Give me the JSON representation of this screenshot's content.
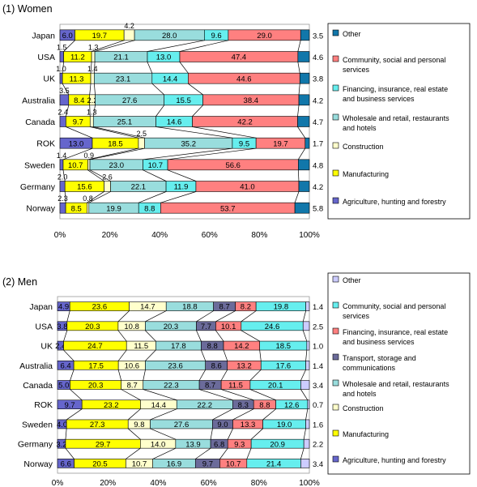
{
  "chart_data": [
    {
      "type": "bar",
      "stacked": "100%",
      "orientation": "horizontal",
      "title": "(1) Women",
      "categories": [
        "Japan",
        "USA",
        "UK",
        "Australia",
        "Canada",
        "ROK",
        "Sweden",
        "Germany",
        "Norway"
      ],
      "xlim": [
        0,
        100
      ],
      "x_ticks": [
        "0%",
        "20%",
        "40%",
        "60%",
        "80%",
        "100%"
      ],
      "legend_position": "right",
      "series": [
        {
          "name": "Agriculture, hunting and forestry",
          "color": "#6666cc",
          "values": [
            6.0,
            1.5,
            1.0,
            3.5,
            2.4,
            13.0,
            1.4,
            2.0,
            2.3
          ]
        },
        {
          "name": "Manufacturing",
          "color": "#ffff00",
          "values": [
            19.7,
            11.2,
            11.3,
            8.4,
            9.7,
            18.5,
            10.7,
            15.6,
            8.5
          ]
        },
        {
          "name": "Construction",
          "color": "#ffffcc",
          "values": [
            4.2,
            1.3,
            1.4,
            2.2,
            1.3,
            2.5,
            0.9,
            2.6,
            0.8
          ]
        },
        {
          "name": "Wholesale and retail, restaurants and hotels",
          "color": "#99dddd",
          "values": [
            28.0,
            21.1,
            23.1,
            27.6,
            25.1,
            35.2,
            23.0,
            22.1,
            19.9
          ]
        },
        {
          "name": "Financing, insurance, real estate and business services",
          "color": "#66eeee",
          "values": [
            9.6,
            13.0,
            14.4,
            15.5,
            14.6,
            9.5,
            10.7,
            11.9,
            8.8
          ]
        },
        {
          "name": "Community, social and personal services",
          "color": "#ff8080",
          "values": [
            29.0,
            47.4,
            44.6,
            38.4,
            42.2,
            19.7,
            56.6,
            41.0,
            53.7
          ]
        },
        {
          "name": "Other",
          "color": "#1177aa",
          "values": [
            3.5,
            4.6,
            3.8,
            4.2,
            4.7,
            1.7,
            4.8,
            4.2,
            5.8
          ]
        }
      ],
      "inside_labels": [
        [
          "6.0",
          "19.7",
          "",
          "28.0",
          "9.6",
          "29.0",
          ""
        ],
        [
          "",
          "11.2",
          "",
          "21.1",
          "13.0",
          "47.4",
          ""
        ],
        [
          "",
          "11.3",
          "",
          "23.1",
          "14.4",
          "44.6",
          ""
        ],
        [
          "",
          "8.4",
          "2.2",
          "27.6",
          "15.5",
          "38.4",
          ""
        ],
        [
          "",
          "9.7",
          "",
          "25.1",
          "14.6",
          "42.2",
          ""
        ],
        [
          "13.0",
          "18.5",
          "",
          "35.2",
          "9.5",
          "19.7",
          ""
        ],
        [
          "",
          "10.7",
          "",
          "23.0",
          "10.7",
          "56.6",
          ""
        ],
        [
          "",
          "15.6",
          "",
          "22.1",
          "11.9",
          "41.0",
          ""
        ],
        [
          "",
          "8.5",
          "",
          "19.9",
          "8.8",
          "53.7",
          ""
        ]
      ],
      "outside_labels": [
        {
          "row": 0,
          "seg": 2,
          "text": "4.2"
        },
        {
          "row": 1,
          "seg": 0,
          "text": "1.5"
        },
        {
          "row": 1,
          "seg": 2,
          "text": "1.3"
        },
        {
          "row": 2,
          "seg": 0,
          "text": "1.0"
        },
        {
          "row": 2,
          "seg": 2,
          "text": "1.4"
        },
        {
          "row": 3,
          "seg": 0,
          "text": "3.5"
        },
        {
          "row": 4,
          "seg": 0,
          "text": "2.4"
        },
        {
          "row": 4,
          "seg": 2,
          "text": "1.3"
        },
        {
          "row": 5,
          "seg": 2,
          "text": "2.5"
        },
        {
          "row": 6,
          "seg": 0,
          "text": "1.4"
        },
        {
          "row": 6,
          "seg": 2,
          "text": "0.9"
        },
        {
          "row": 7,
          "seg": 0,
          "text": "2.0"
        },
        {
          "row": 7,
          "seg": 2,
          "text": "2.6"
        },
        {
          "row": 8,
          "seg": 0,
          "text": "2.3"
        },
        {
          "row": 8,
          "seg": 2,
          "text": "0.8"
        }
      ]
    },
    {
      "type": "bar",
      "stacked": "100%",
      "orientation": "horizontal",
      "title": "(2) Men",
      "categories": [
        "Japan",
        "USA",
        "UK",
        "Australia",
        "Canada",
        "ROK",
        "Sweden",
        "Germany",
        "Norway"
      ],
      "xlim": [
        0,
        100
      ],
      "x_ticks": [
        "0%",
        "20%",
        "40%",
        "60%",
        "80%",
        "100%"
      ],
      "legend_position": "right",
      "series": [
        {
          "name": "Agriculture, hunting and forestry",
          "color": "#6666cc",
          "values": [
            4.9,
            3.8,
            2.4,
            6.4,
            5.0,
            9.7,
            4.0,
            3.2,
            6.6
          ]
        },
        {
          "name": "Manufacturing",
          "color": "#ffff00",
          "values": [
            23.6,
            20.3,
            24.7,
            17.5,
            20.3,
            23.2,
            27.3,
            29.7,
            20.5
          ]
        },
        {
          "name": "Construction",
          "color": "#ffffcc",
          "values": [
            14.7,
            10.8,
            11.5,
            10.6,
            8.7,
            14.4,
            9.8,
            14.0,
            10.7
          ]
        },
        {
          "name": "Wholesale and retail, restaurants and hotels",
          "color": "#99dddd",
          "values": [
            18.8,
            20.3,
            17.8,
            23.6,
            22.3,
            22.2,
            27.6,
            13.9,
            16.9
          ]
        },
        {
          "name": "Transport, storage and communications",
          "color": "#6b6b9a",
          "values": [
            8.7,
            7.7,
            8.8,
            8.6,
            8.7,
            8.3,
            9.0,
            6.8,
            9.7
          ]
        },
        {
          "name": "Financing, insurance, real estate and business services",
          "color": "#ff8080",
          "values": [
            8.2,
            10.1,
            14.2,
            13.2,
            11.5,
            8.8,
            13.3,
            9.3,
            10.7
          ]
        },
        {
          "name": "Community, social and personal services",
          "color": "#66eeee",
          "values": [
            19.8,
            24.6,
            18.5,
            17.6,
            20.1,
            12.6,
            19.0,
            20.9,
            21.4
          ]
        },
        {
          "name": "Other",
          "color": "#ccccff",
          "values": [
            1.4,
            2.5,
            1.0,
            1.4,
            3.4,
            0.7,
            1.6,
            2.2,
            3.4
          ]
        }
      ],
      "inside_labels": [
        [
          "4.9",
          "23.6",
          "14.7",
          "18.8",
          "8.7",
          "8.2",
          "19.8",
          ""
        ],
        [
          "3.8",
          "20.3",
          "10.8",
          "20.3",
          "7.7",
          "10.1",
          "24.6",
          ""
        ],
        [
          "2.4",
          "24.7",
          "11.5",
          "17.8",
          "8.8",
          "14.2",
          "18.5",
          ""
        ],
        [
          "6.4",
          "17.5",
          "10.6",
          "23.6",
          "8.6",
          "13.2",
          "17.6",
          ""
        ],
        [
          "5.0",
          "20.3",
          "8.7",
          "22.3",
          "8.7",
          "11.5",
          "20.1",
          ""
        ],
        [
          "9.7",
          "23.2",
          "14.4",
          "22.2",
          "8.3",
          "8.8",
          "12.6",
          ""
        ],
        [
          "4.0",
          "27.3",
          "9.8",
          "27.6",
          "9.0",
          "13.3",
          "19.0",
          ""
        ],
        [
          "3.2",
          "29.7",
          "14.0",
          "13.9",
          "6.8",
          "9.3",
          "20.9",
          ""
        ],
        [
          "6.6",
          "20.5",
          "10.7",
          "16.9",
          "9.7",
          "10.7",
          "21.4",
          ""
        ]
      ],
      "outside_labels": []
    }
  ]
}
